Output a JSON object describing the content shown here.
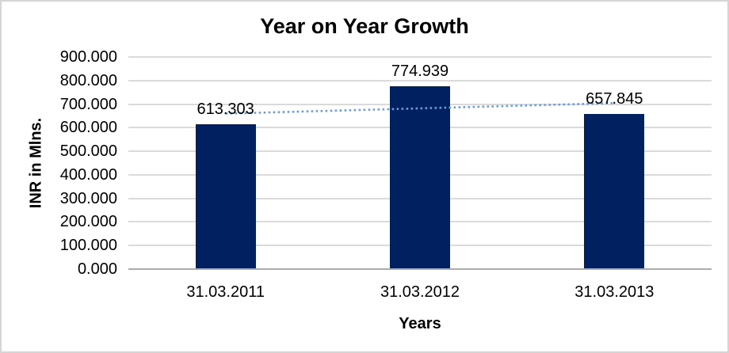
{
  "chart_data": {
    "type": "bar",
    "title": "Year on Year Growth",
    "xlabel": "Years",
    "ylabel": "INR in Mlns.",
    "categories": [
      "31.03.2011",
      "31.03.2012",
      "31.03.2013"
    ],
    "values": [
      613.303,
      774.939,
      657.845
    ],
    "data_labels": [
      "613.303",
      "774.939",
      "657.845"
    ],
    "ylim": [
      0,
      900
    ],
    "ytick_step": 100,
    "y_tick_labels": [
      "900.000",
      "800.000",
      "700.000",
      "600.000",
      "500.000",
      "400.000",
      "300.000",
      "200.000",
      "100.000",
      "0.000"
    ],
    "grid": true,
    "legend": "none",
    "trendline": {
      "type": "linear",
      "style": "dotted"
    },
    "colors": {
      "bar": "#002060",
      "trendline": "#6F9CD6",
      "gridline": "#DADADA",
      "axis_line": "#ACACAC",
      "text": "#000000",
      "border": "#D5D5D5",
      "background": "#FFFFFF"
    }
  }
}
